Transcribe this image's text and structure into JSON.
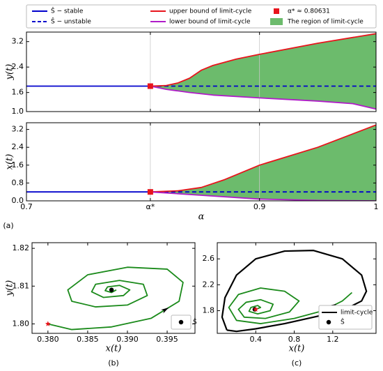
{
  "chart_data": [
    {
      "type": "line",
      "ylabel": "y(t)",
      "xlim": [
        0.7,
        1.0
      ],
      "ylim": [
        1.0,
        3.5
      ],
      "grid": "x",
      "show_xtick_labels": false,
      "xticks": [
        0.7,
        {
          "value": 0.80631,
          "label": "α*"
        },
        0.9,
        1
      ],
      "yticks": [
        {
          "value": 1.0,
          "label": "1.0"
        },
        1.6,
        2.4,
        3.2
      ],
      "series": [
        {
          "name": "Ŝ − stable",
          "color": "#0000cc",
          "dash": false,
          "x": [
            0.7,
            0.80631
          ],
          "y": [
            1.8,
            1.8
          ]
        },
        {
          "name": "Ŝ − unstable",
          "color": "#0000cc",
          "dash": true,
          "x": [
            0.80631,
            1.0
          ],
          "y": [
            1.8,
            1.8
          ]
        },
        {
          "name": "upper bound of limit-cycle",
          "color": "#e8141c",
          "dash": false,
          "x": [
            0.80631,
            0.82,
            0.83,
            0.84,
            0.85,
            0.86,
            0.88,
            0.9,
            0.95,
            1.0
          ],
          "y": [
            1.8,
            1.82,
            1.9,
            2.05,
            2.3,
            2.45,
            2.65,
            2.8,
            3.15,
            3.45
          ]
        },
        {
          "name": "lower bound of limit-cycle",
          "color": "#b01cc8",
          "dash": false,
          "x": [
            0.80631,
            0.82,
            0.84,
            0.86,
            0.9,
            0.95,
            0.98,
            1.0
          ],
          "y": [
            1.8,
            1.7,
            1.6,
            1.52,
            1.43,
            1.33,
            1.25,
            1.08
          ]
        }
      ],
      "points": [
        {
          "name": "α* ≈ 0.80631",
          "color": "#e8141c",
          "marker": "square",
          "x": 0.80631,
          "y": 1.8
        }
      ],
      "fill": {
        "name": "The region of limit-cycle",
        "color": "#6cbb6c",
        "between": [
          2,
          3
        ]
      }
    },
    {
      "type": "line",
      "ylabel": "x(t)",
      "xlabel": "α",
      "panel_label": "(a)",
      "xlim": [
        0.7,
        1.0
      ],
      "ylim": [
        0,
        3.5
      ],
      "grid": "x",
      "show_xtick_labels": true,
      "xticks": [
        0.7,
        {
          "value": 0.80631,
          "label": "α*"
        },
        0.9,
        1
      ],
      "yticks": [
        {
          "value": 0,
          "label": "0.0"
        },
        0.8,
        1.6,
        2.4,
        3.2
      ],
      "series": [
        {
          "color": "#0000cc",
          "dash": false,
          "x": [
            0.7,
            0.80631
          ],
          "y": [
            0.4,
            0.4
          ]
        },
        {
          "color": "#0000cc",
          "dash": true,
          "x": [
            0.80631,
            1.0
          ],
          "y": [
            0.4,
            0.4
          ]
        },
        {
          "color": "#e8141c",
          "dash": false,
          "x": [
            0.80631,
            0.83,
            0.85,
            0.87,
            0.9,
            0.95,
            1.0
          ],
          "y": [
            0.4,
            0.45,
            0.6,
            0.95,
            1.6,
            2.4,
            3.4
          ]
        },
        {
          "color": "#b01cc8",
          "dash": false,
          "x": [
            0.80631,
            0.85,
            0.9,
            0.95,
            1.0
          ],
          "y": [
            0.4,
            0.25,
            0.08,
            0.02,
            0.0
          ]
        }
      ],
      "points": [
        {
          "color": "#e8141c",
          "marker": "square",
          "x": 0.80631,
          "y": 0.4
        }
      ],
      "fill": {
        "color": "#6cbb6c",
        "between": [
          2,
          3
        ]
      }
    },
    {
      "type": "line",
      "ylabel": "y(t)",
      "xlabel": "x(t)",
      "panel_label": "(b)",
      "xlim": [
        0.378,
        0.3985
      ],
      "ylim": [
        1.7975,
        1.8215
      ],
      "show_xtick_labels": true,
      "xticks": [
        {
          "value": 0.38,
          "label": "0.380"
        },
        0.385,
        {
          "value": 0.39,
          "label": "0.390"
        },
        0.395
      ],
      "yticks": [
        {
          "value": 1.8,
          "label": "1.80"
        },
        1.81,
        {
          "value": 1.82,
          "label": "1.82"
        }
      ],
      "series": [
        {
          "color": "#1a8a1a",
          "dash": false,
          "x": [
            0.38,
            0.383,
            0.388,
            0.393,
            0.3965,
            0.397,
            0.395,
            0.39,
            0.385,
            0.3825,
            0.383,
            0.386,
            0.39,
            0.3925,
            0.392,
            0.389,
            0.386,
            0.3855,
            0.387,
            0.3895,
            0.3903,
            0.389,
            0.3875,
            0.3872,
            0.388,
            0.3886
          ],
          "y": [
            1.8,
            1.7985,
            1.7992,
            1.8015,
            1.806,
            1.811,
            1.8145,
            1.815,
            1.813,
            1.809,
            1.806,
            1.8045,
            1.805,
            1.8075,
            1.8105,
            1.8115,
            1.8105,
            1.8085,
            1.807,
            1.8075,
            1.809,
            1.8102,
            1.8098,
            1.8088,
            1.8083,
            1.809
          ]
        }
      ],
      "points": [
        {
          "color": "#e8141c",
          "marker": "star",
          "x": 0.38,
          "y": 1.8
        },
        {
          "name": "Ŝ",
          "color": "#000000",
          "marker": "circle",
          "x": 0.388,
          "y": 1.809
        }
      ]
    },
    {
      "type": "line",
      "xlabel": "x(t)",
      "panel_label": "(c)",
      "xlim": [
        0,
        1.65
      ],
      "ylim": [
        1.45,
        2.85
      ],
      "show_xtick_labels": true,
      "xticks": [
        0.4,
        0.8,
        1.2
      ],
      "yticks": [
        1.8,
        2.2,
        2.6
      ],
      "series": [
        {
          "color": "#1a8a1a",
          "dash": false,
          "x": [
            0.4,
            0.45,
            0.42,
            0.35,
            0.33,
            0.42,
            0.55,
            0.58,
            0.45,
            0.3,
            0.22,
            0.28,
            0.5,
            0.75,
            0.85,
            0.7,
            0.45,
            0.22,
            0.12,
            0.2,
            0.45,
            0.8,
            1.1,
            1.3,
            1.4
          ],
          "y": [
            1.82,
            1.85,
            1.88,
            1.85,
            1.79,
            1.75,
            1.8,
            1.9,
            1.97,
            1.93,
            1.82,
            1.7,
            1.68,
            1.78,
            1.95,
            2.1,
            2.15,
            2.05,
            1.85,
            1.65,
            1.6,
            1.68,
            1.8,
            1.95,
            2.08
          ]
        },
        {
          "name": "limit-cycle",
          "color": "#000000",
          "dash": false,
          "width": 2.2,
          "x": [
            0.1,
            0.05,
            0.08,
            0.2,
            0.4,
            0.7,
            1.0,
            1.3,
            1.5,
            1.55,
            1.5,
            1.3,
            1.0,
            0.7,
            0.4,
            0.2,
            0.1
          ],
          "y": [
            1.5,
            1.7,
            2.0,
            2.35,
            2.6,
            2.72,
            2.73,
            2.6,
            2.35,
            2.1,
            1.95,
            1.8,
            1.7,
            1.6,
            1.52,
            1.48,
            1.5
          ]
        }
      ],
      "points": [
        {
          "name": "Ŝ",
          "color": "#000000",
          "marker": "circle",
          "x": 0.39,
          "y": 1.82
        },
        {
          "color": "#e8141c",
          "marker": "star",
          "x": 0.4,
          "y": 1.82
        }
      ]
    }
  ]
}
